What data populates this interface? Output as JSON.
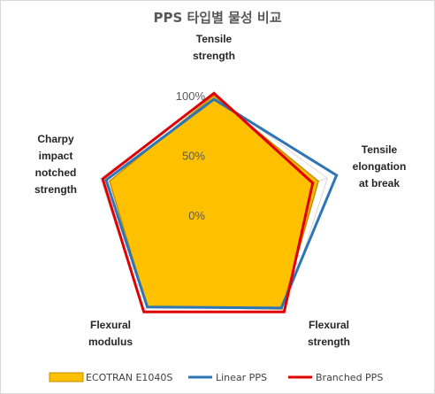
{
  "chart_data": {
    "type": "radar",
    "title": "PPS 타입별 물성 비교",
    "axes": [
      [
        "Tensile",
        "strength"
      ],
      [
        "Tensile",
        "elongation",
        "at break"
      ],
      [
        "Flexural",
        "strength"
      ],
      [
        "Flexural",
        "modulus"
      ],
      [
        "Charpy",
        "impact",
        "notched",
        "strength"
      ]
    ],
    "ticks": [
      "0%",
      "50%",
      "100%"
    ],
    "tick_values": [
      0,
      50,
      100
    ],
    "range": [
      0,
      100
    ],
    "grid": true,
    "legend_position": "bottom",
    "series": [
      {
        "name": "ECOTRAN E1040S",
        "values": [
          100,
          92,
          97,
          95,
          92
        ],
        "color": "#FFC000",
        "border": "#BF9000",
        "style": "filled"
      },
      {
        "name": "Linear PPS",
        "values": [
          97,
          108,
          96,
          95,
          95
        ],
        "color": "#2E75B6",
        "style": "line"
      },
      {
        "name": "Branched PPS",
        "values": [
          102,
          87,
          100,
          100,
          98
        ],
        "color": "#E00000",
        "style": "line"
      }
    ]
  }
}
